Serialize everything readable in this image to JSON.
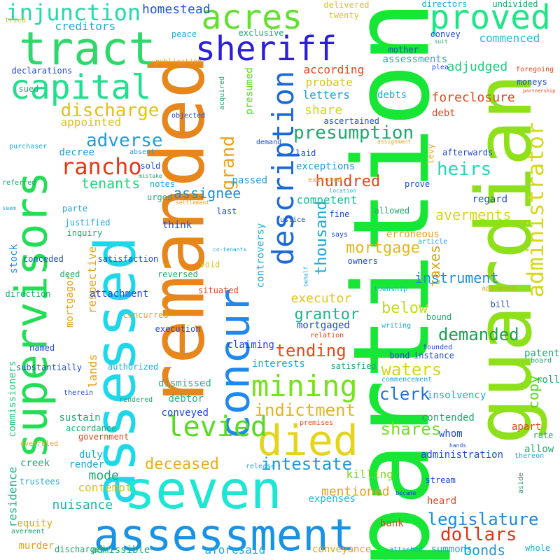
{
  "words": [
    {
      "text": "partition",
      "color": "#18e636"
    },
    {
      "text": "guardian",
      "color": "#8ee01a"
    },
    {
      "text": "remanded",
      "color": "#e6861b"
    },
    {
      "text": "assessed",
      "color": "#1ed8ea"
    },
    {
      "text": "supervisors",
      "color": "#24dd57"
    },
    {
      "text": "concur",
      "color": "#1d89ee"
    },
    {
      "text": "description",
      "color": "#1b69d8"
    },
    {
      "text": "seven",
      "color": "#1ee6d2"
    },
    {
      "text": "assessment",
      "color": "#1a92e4"
    },
    {
      "text": "tract",
      "color": "#2fd86a"
    },
    {
      "text": "sheriff",
      "color": "#2c1fd8"
    },
    {
      "text": "acres",
      "color": "#62e02e"
    },
    {
      "text": "proved",
      "color": "#1ee686"
    },
    {
      "text": "capital",
      "color": "#1ee08e"
    },
    {
      "text": "administrator",
      "color": "#d6d81a"
    },
    {
      "text": "died",
      "color": "#e4d41c"
    },
    {
      "text": "mining",
      "color": "#74e21c"
    },
    {
      "text": "levied",
      "color": "#56dc1e"
    },
    {
      "text": "injunction",
      "color": "#2ad6aa"
    },
    {
      "text": "rancho",
      "color": "#e03a18"
    },
    {
      "text": "discharge",
      "color": "#e2c01a"
    },
    {
      "text": "presumption",
      "color": "#1ea86e"
    },
    {
      "text": "heirs",
      "color": "#22d8b8"
    },
    {
      "text": "grand",
      "color": "#e8a41a"
    },
    {
      "text": "adverse",
      "color": "#1e9ed8"
    },
    {
      "text": "tenants",
      "color": "#1ed67c"
    },
    {
      "text": "assignee",
      "color": "#1e8ed8"
    },
    {
      "text": "hundred",
      "color": "#e04818"
    },
    {
      "text": "thousand",
      "color": "#1ea8d8"
    },
    {
      "text": "mortgage",
      "color": "#e0b81a"
    },
    {
      "text": "dollars",
      "color": "#e03418"
    },
    {
      "text": "legislature",
      "color": "#1e8ad8"
    },
    {
      "text": "intestate",
      "color": "#1e98d8"
    },
    {
      "text": "deceased",
      "color": "#e6ae1e"
    },
    {
      "text": "indictment",
      "color": "#e4b41a"
    },
    {
      "text": "shares",
      "color": "#74dc2a"
    },
    {
      "text": "waters",
      "color": "#d6d41a"
    },
    {
      "text": "clerk",
      "color": "#1e72d8"
    },
    {
      "text": "tending",
      "color": "#e04a18"
    },
    {
      "text": "demanded",
      "color": "#1e9e52"
    },
    {
      "text": "below",
      "color": "#c8d81a"
    },
    {
      "text": "grantor",
      "color": "#1eb48e"
    },
    {
      "text": "executor",
      "color": "#e2c41a"
    },
    {
      "text": "instrument",
      "color": "#1e8ed8"
    },
    {
      "text": "averments",
      "color": "#d8d41a"
    },
    {
      "text": "taxes",
      "color": "#d6a61a"
    },
    {
      "text": "copy",
      "color": "#56d81e"
    },
    {
      "text": "bonds",
      "color": "#1e98d8"
    },
    {
      "text": "mode",
      "color": "#1ea86e"
    },
    {
      "text": "nuisance",
      "color": "#1eb4a8"
    },
    {
      "text": "contempt",
      "color": "#d8c21a"
    },
    {
      "text": "killing",
      "color": "#7ad81e"
    },
    {
      "text": "mentioned",
      "color": "#e6a21a"
    },
    {
      "text": "expenses",
      "color": "#1ebcd8"
    },
    {
      "text": "homestead",
      "color": "#1e5ad8"
    },
    {
      "text": "creditors",
      "color": "#1ea6d8"
    },
    {
      "text": "according",
      "color": "#e04818"
    },
    {
      "text": "probate",
      "color": "#d8c21a"
    },
    {
      "text": "letters",
      "color": "#1e9ed8"
    },
    {
      "text": "share",
      "color": "#cdd81a"
    },
    {
      "text": "adjudged",
      "color": "#1ecc7e"
    },
    {
      "text": "commenced",
      "color": "#1ebcd8"
    },
    {
      "text": "foreclosure",
      "color": "#e04818"
    },
    {
      "text": "appointed",
      "color": "#d8c21a"
    },
    {
      "text": "respective",
      "color": "#e6a21a"
    },
    {
      "text": "lands",
      "color": "#e6a21a"
    },
    {
      "text": "mortgagor",
      "color": "#e6a21a"
    },
    {
      "text": "commissioners",
      "color": "#1ecc7e"
    },
    {
      "text": "residence",
      "color": "#1eb48e"
    },
    {
      "text": "controversy",
      "color": "#1ea8d8"
    },
    {
      "text": "presumed",
      "color": "#56d81e"
    },
    {
      "text": "decree",
      "color": "#1e98d8"
    },
    {
      "text": "notes",
      "color": "#1ea6d8"
    },
    {
      "text": "competent",
      "color": "#1ebc9a"
    },
    {
      "text": "exceptions",
      "color": "#1e98d8"
    },
    {
      "text": "passed",
      "color": "#1e98d8"
    },
    {
      "text": "stock",
      "color": "#1e8ed8"
    },
    {
      "text": "think",
      "color": "#1e4ad8"
    },
    {
      "text": "justified",
      "color": "#1ea8d8"
    },
    {
      "text": "parte",
      "color": "#1ea8d8"
    },
    {
      "text": "regard",
      "color": "#1e4ad8"
    },
    {
      "text": "debts",
      "color": "#1ea8d8"
    },
    {
      "text": "debt",
      "color": "#e04818"
    },
    {
      "text": "sustain",
      "color": "#1ea86e"
    },
    {
      "text": "claiming",
      "color": "#1e4ad8"
    },
    {
      "text": "interests",
      "color": "#1ea8d8"
    },
    {
      "text": "mortgaged",
      "color": "#1e4ad8"
    },
    {
      "text": "equity",
      "color": "#e6a21a"
    },
    {
      "text": "murder",
      "color": "#e6a21a"
    },
    {
      "text": "trustees",
      "color": "#1ea8d8"
    },
    {
      "text": "creek",
      "color": "#1ea86e"
    },
    {
      "text": "conveyed",
      "color": "#1e4ad8"
    },
    {
      "text": "dismissed",
      "color": "#1eb48e"
    },
    {
      "text": "debtor",
      "color": "#1eb48e"
    },
    {
      "text": "duly",
      "color": "#1ea6d8"
    },
    {
      "text": "render",
      "color": "#1ea6d8"
    },
    {
      "text": "attachment",
      "color": "#1e4ad8"
    },
    {
      "text": "aforesaid",
      "color": "#1ea8d8"
    },
    {
      "text": "admissible",
      "color": "#1ea86e"
    },
    {
      "text": "conveyance",
      "color": "#e6a21a"
    },
    {
      "text": "summons",
      "color": "#1ea8d8"
    },
    {
      "text": "bank",
      "color": "#e04818"
    },
    {
      "text": "heard",
      "color": "#e04818"
    },
    {
      "text": "stream",
      "color": "#1e4ad8"
    },
    {
      "text": "administration",
      "color": "#1e4ad8"
    },
    {
      "text": "whom",
      "color": "#1e4ad8"
    },
    {
      "text": "contended",
      "color": "#1ea86e"
    },
    {
      "text": "insolvency",
      "color": "#1ea8d8"
    },
    {
      "text": "apart",
      "color": "#e04818"
    },
    {
      "text": "rate",
      "color": "#1ea86e"
    },
    {
      "text": "allow",
      "color": "#1ea86e"
    },
    {
      "text": "patent",
      "color": "#1ea86e"
    },
    {
      "text": "roll",
      "color": "#1ea86e"
    },
    {
      "text": "bill",
      "color": "#1e4ad8"
    },
    {
      "text": "bound",
      "color": "#1ea86e"
    },
    {
      "text": "void",
      "color": "#d8c21a"
    },
    {
      "text": "prove",
      "color": "#1e4ad8"
    },
    {
      "text": "owners",
      "color": "#1e4ad8"
    },
    {
      "text": "erroneous",
      "color": "#e6a21a"
    },
    {
      "text": "allowed",
      "color": "#1ea86e"
    },
    {
      "text": "fine",
      "color": "#1e4ad8"
    },
    {
      "text": "levy",
      "color": "#e6a21a"
    },
    {
      "text": "afterwards",
      "color": "#1e4ad8"
    },
    {
      "text": "laid",
      "color": "#1e4ad8"
    },
    {
      "text": "moneys",
      "color": "#1e4ad8"
    },
    {
      "text": "assessments",
      "color": "#1ea8d8"
    },
    {
      "text": "ascertained",
      "color": "#1e4ad8"
    },
    {
      "text": "mother",
      "color": "#1e4ad8"
    },
    {
      "text": "convey",
      "color": "#1e4ad8"
    },
    {
      "text": "twenty",
      "color": "#d8c21a"
    },
    {
      "text": "delivered",
      "color": "#d8c21a"
    },
    {
      "text": "directors",
      "color": "#1ea8d8"
    },
    {
      "text": "undivided",
      "color": "#1ea86e"
    },
    {
      "text": "exclusive",
      "color": "#1ea86e"
    },
    {
      "text": "peace",
      "color": "#1ea6d8"
    },
    {
      "text": "publication",
      "color": "#e6a21a"
    },
    {
      "text": "sued",
      "color": "#1ea86e"
    },
    {
      "text": "declarations",
      "color": "#1e4ad8"
    },
    {
      "text": "tried",
      "color": "#d8c21a"
    },
    {
      "text": "objected",
      "color": "#1e4ad8"
    },
    {
      "text": "purchaser",
      "color": "#1ea8d8"
    },
    {
      "text": "absent",
      "color": "#1ea6d8"
    },
    {
      "text": "sold",
      "color": "#1e4ad8"
    },
    {
      "text": "referred",
      "color": "#1ea86e"
    },
    {
      "text": "mistake",
      "color": "#1ea86e"
    },
    {
      "text": "urged",
      "color": "#1ea86e"
    },
    {
      "text": "settlement",
      "color": "#e6a21a"
    },
    {
      "text": "seem",
      "color": "#1ea8d8"
    },
    {
      "text": "inquiry",
      "color": "#1ea86e"
    },
    {
      "text": "conceded",
      "color": "#1e4ad8"
    },
    {
      "text": "satisfaction",
      "color": "#1e4ad8"
    },
    {
      "text": "co-tenants",
      "color": "#1ea8d8"
    },
    {
      "text": "reversed",
      "color": "#1ea86e"
    },
    {
      "text": "situated",
      "color": "#e04818"
    },
    {
      "text": "deed",
      "color": "#1ea86e"
    },
    {
      "text": "direction",
      "color": "#1ea86e"
    },
    {
      "text": "concurred",
      "color": "#e6a21a"
    },
    {
      "text": "execution",
      "color": "#1e4ad8"
    },
    {
      "text": "named",
      "color": "#1e4ad8"
    },
    {
      "text": "substantially",
      "color": "#1e4ad8"
    },
    {
      "text": "authorized",
      "color": "#1ea8d8"
    },
    {
      "text": "therein",
      "color": "#1e4ad8"
    },
    {
      "text": "rendered",
      "color": "#1ea86e"
    },
    {
      "text": "accordance",
      "color": "#1ea86e"
    },
    {
      "text": "government",
      "color": "#e04818"
    },
    {
      "text": "overruled",
      "color": "#e6a21a"
    },
    {
      "text": "averment",
      "color": "#1ea86e"
    },
    {
      "text": "discharged",
      "color": "#1ea86e"
    },
    {
      "text": "release",
      "color": "#1ea8d8"
    },
    {
      "text": "premises",
      "color": "#e04818"
    },
    {
      "text": "commencement",
      "color": "#1ea8d8"
    },
    {
      "text": "satisfied",
      "color": "#1ea86e"
    },
    {
      "text": "bond",
      "color": "#1e4ad8"
    },
    {
      "text": "instance",
      "color": "#1e4ad8"
    },
    {
      "text": "founded",
      "color": "#1e4ad8"
    },
    {
      "text": "board",
      "color": "#1ea86e"
    },
    {
      "text": "writing",
      "color": "#1ea8d8"
    },
    {
      "text": "relation",
      "color": "#e04818"
    },
    {
      "text": "executed",
      "color": "#e6a21a"
    },
    {
      "text": "demand",
      "color": "#1e4ad8"
    },
    {
      "text": "assignment",
      "color": "#e6a21a"
    },
    {
      "text": "location",
      "color": "#1ea8d8"
    },
    {
      "text": "justice",
      "color": "#1e4ad8"
    },
    {
      "text": "says",
      "color": "#1e4ad8"
    },
    {
      "text": "article",
      "color": "#1ea8d8"
    },
    {
      "text": "behalf",
      "color": "#1ea8d8"
    },
    {
      "text": "township",
      "color": "#1ea8d8"
    },
    {
      "text": "approved",
      "color": "#e6a21a"
    },
    {
      "text": "hands",
      "color": "#1e4ad8"
    },
    {
      "text": "thereon",
      "color": "#1ea8d8"
    },
    {
      "text": "aside",
      "color": "#1ea86e"
    },
    {
      "text": "became",
      "color": "#1e4ad8"
    },
    {
      "text": "attached",
      "color": "#1ea8d8"
    },
    {
      "text": "whole",
      "color": "#1ea8d8"
    },
    {
      "text": "suit",
      "color": "#1ea86e"
    },
    {
      "text": "plea",
      "color": "#1e4ad8"
    },
    {
      "text": "foregoing",
      "color": "#e04818"
    },
    {
      "text": "partnership",
      "color": "#e04818"
    },
    {
      "text": "acquired",
      "color": "#1ea86e"
    },
    {
      "text": "last",
      "color": "#1e4ad8"
    }
  ]
}
